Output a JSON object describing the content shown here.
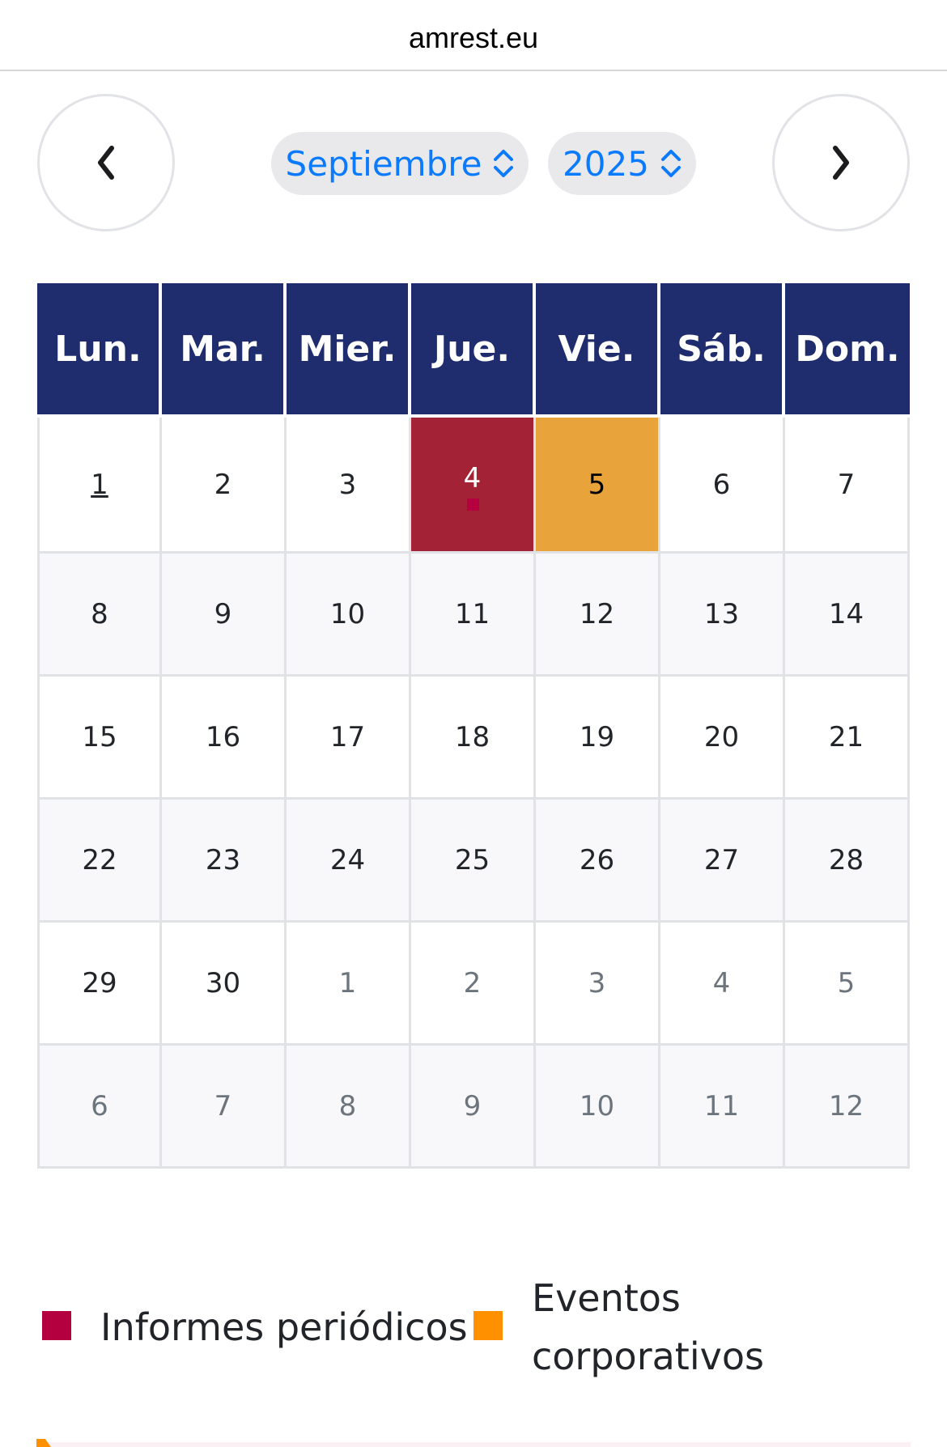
{
  "browser": {
    "url": "amrest.eu"
  },
  "nav": {
    "prev_icon": "chevron-left-icon",
    "next_icon": "chevron-right-icon",
    "month": "Septiembre",
    "year": "2025"
  },
  "calendar": {
    "weekdays": [
      "Lun.",
      "Mar.",
      "Mier.",
      "Jue.",
      "Vie.",
      "Sáb.",
      "Dom."
    ],
    "weeks": [
      [
        "1",
        "2",
        "3",
        "4",
        "5",
        "6",
        "7"
      ],
      [
        "8",
        "9",
        "10",
        "11",
        "12",
        "13",
        "14"
      ],
      [
        "15",
        "16",
        "17",
        "18",
        "19",
        "20",
        "21"
      ],
      [
        "22",
        "23",
        "24",
        "25",
        "26",
        "27",
        "28"
      ],
      [
        "29",
        "30",
        "1",
        "2",
        "3",
        "4",
        "5"
      ],
      [
        "6",
        "7",
        "8",
        "9",
        "10",
        "11",
        "12"
      ]
    ],
    "today": "1",
    "events": {
      "4": "Informes periódicos",
      "5": "Eventos corporativos"
    }
  },
  "legend": [
    {
      "label": "Informes periódicos",
      "color": "#b5003f"
    },
    {
      "label": "Eventos corporativos",
      "color": "#ff9000"
    }
  ],
  "colors": {
    "header": "#1f2d6e",
    "report_day": "#a32235",
    "event_day": "#e8a33a",
    "accent": "#0a7aff"
  }
}
